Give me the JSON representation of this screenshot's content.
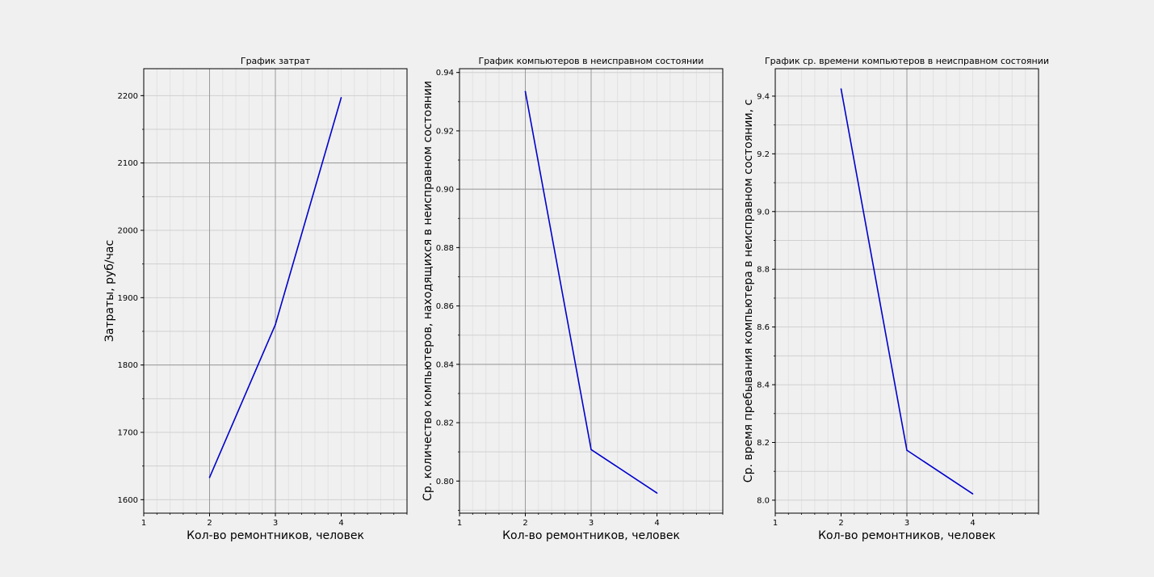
{
  "chart_data": [
    {
      "type": "line",
      "title": "График затрат",
      "xlabel": "Кол-во ремонтников, человек",
      "ylabel": "Затраты, руб/час",
      "x": [
        2,
        3,
        4
      ],
      "series": [
        {
          "values": [
            1633,
            1860,
            2197
          ]
        }
      ],
      "xlim": [
        1,
        5
      ],
      "ylim": [
        1580,
        2240
      ],
      "xticks": [
        1,
        2,
        3,
        4
      ],
      "yticks": [
        1600,
        1700,
        1800,
        1900,
        2000,
        2100,
        2200
      ],
      "ytick_labels": [
        "1600",
        "1700",
        "1800",
        "1900",
        "2000",
        "2100",
        "2200"
      ],
      "major_grid_x": [
        2,
        3
      ],
      "major_grid_y": [
        1800,
        2100
      ],
      "grid": true,
      "line_color": "#0000cc"
    },
    {
      "type": "line",
      "title": "График компьютеров в неисправном состоянии",
      "xlabel": "Кол-во ремонтников, человек",
      "ylabel": "Ср. количество компьютеров, находящихся в неисправном состоянии",
      "x": [
        2,
        3,
        4
      ],
      "series": [
        {
          "values": [
            0.9335,
            0.8108,
            0.7959
          ]
        }
      ],
      "xlim": [
        1,
        5
      ],
      "ylim": [
        0.789,
        0.9413
      ],
      "xticks": [
        1,
        2,
        3,
        4
      ],
      "yticks": [
        0.8,
        0.82,
        0.84,
        0.86,
        0.88,
        0.9,
        0.92,
        0.94
      ],
      "ytick_labels": [
        "0.80",
        "0.82",
        "0.84",
        "0.86",
        "0.88",
        "0.90",
        "0.92",
        "0.94"
      ],
      "major_grid_x": [
        2,
        3
      ],
      "major_grid_y": [
        0.84,
        0.9
      ],
      "grid": true,
      "line_color": "#0000cc"
    },
    {
      "type": "line",
      "title": "График ср. времени компьютеров в неисправном состоянии",
      "xlabel": "Кол-во ремонтников, человек",
      "ylabel": "Ср. время пребывания компьютера в неисправном состоянии, с",
      "x": [
        2,
        3,
        4
      ],
      "series": [
        {
          "values": [
            9.425,
            8.173,
            8.022
          ]
        }
      ],
      "xlim": [
        1,
        5
      ],
      "ylim": [
        7.955,
        9.495
      ],
      "xticks": [
        1,
        2,
        3,
        4
      ],
      "yticks": [
        8.0,
        8.2,
        8.4,
        8.6,
        8.8,
        9.0,
        9.2,
        9.4
      ],
      "ytick_labels": [
        "8.0",
        "8.2",
        "8.4",
        "8.6",
        "8.8",
        "9.0",
        "9.2",
        "9.4"
      ],
      "major_grid_x": [
        3
      ],
      "major_grid_y": [
        8.8,
        9.0
      ],
      "grid": true,
      "line_color": "#0000cc"
    }
  ]
}
